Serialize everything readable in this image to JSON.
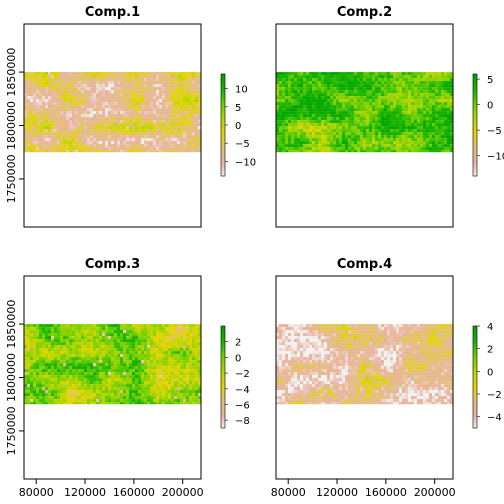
{
  "chart_data": [
    {
      "type": "heatmap",
      "title": "Comp.1",
      "xlim": [
        70000,
        215000
      ],
      "ylim": [
        1705000,
        1895000
      ],
      "raster_y_range": [
        1775000,
        1850000
      ],
      "x_ticks": [],
      "y_ticks": [
        1750000,
        1800000,
        1850000
      ],
      "legend_ticks": [
        10,
        5,
        0,
        -5,
        -10
      ],
      "legend_range": [
        -14,
        14
      ],
      "value_range_estimate": [
        -14,
        14
      ],
      "bias": 0.3,
      "orange_frac": 0.18,
      "seed": 11
    },
    {
      "type": "heatmap",
      "title": "Comp.2",
      "xlim": [
        70000,
        215000
      ],
      "ylim": [
        1705000,
        1895000
      ],
      "raster_y_range": [
        1775000,
        1850000
      ],
      "x_ticks": [],
      "y_ticks": [],
      "legend_ticks": [
        5,
        0,
        -5,
        -10
      ],
      "legend_range": [
        -14,
        6
      ],
      "value_range_estimate": [
        -14,
        6
      ],
      "bias": 0.78,
      "orange_frac": 0.0,
      "seed": 23
    },
    {
      "type": "heatmap",
      "title": "Comp.3",
      "xlim": [
        70000,
        215000
      ],
      "ylim": [
        1705000,
        1895000
      ],
      "raster_y_range": [
        1775000,
        1850000
      ],
      "x_ticks": [
        80000,
        120000,
        160000,
        200000
      ],
      "y_ticks": [
        1750000,
        1800000,
        1850000
      ],
      "legend_ticks": [
        2,
        0,
        -2,
        -4,
        -6,
        -8
      ],
      "legend_range": [
        -9,
        4
      ],
      "value_range_estimate": [
        -9,
        4
      ],
      "bias": 0.65,
      "orange_frac": 0.04,
      "seed": 37
    },
    {
      "type": "heatmap",
      "title": "Comp.4",
      "xlim": [
        70000,
        215000
      ],
      "ylim": [
        1705000,
        1895000
      ],
      "raster_y_range": [
        1775000,
        1850000
      ],
      "x_ticks": [
        80000,
        120000,
        160000,
        200000
      ],
      "y_ticks": [],
      "legend_ticks": [
        4,
        2,
        0,
        -2,
        -4
      ],
      "legend_range": [
        -5,
        4
      ],
      "value_range_estimate": [
        -5,
        4
      ],
      "bias": 0.2,
      "orange_frac": 0.22,
      "seed": 53
    }
  ],
  "colors": {
    "ramp": [
      "#f2f2f2",
      "#eab2a0",
      "#e0c27a",
      "#e6d400",
      "#b6d500",
      "#6fcf00",
      "#1ab400",
      "#00a600"
    ],
    "frame": "#000000"
  }
}
